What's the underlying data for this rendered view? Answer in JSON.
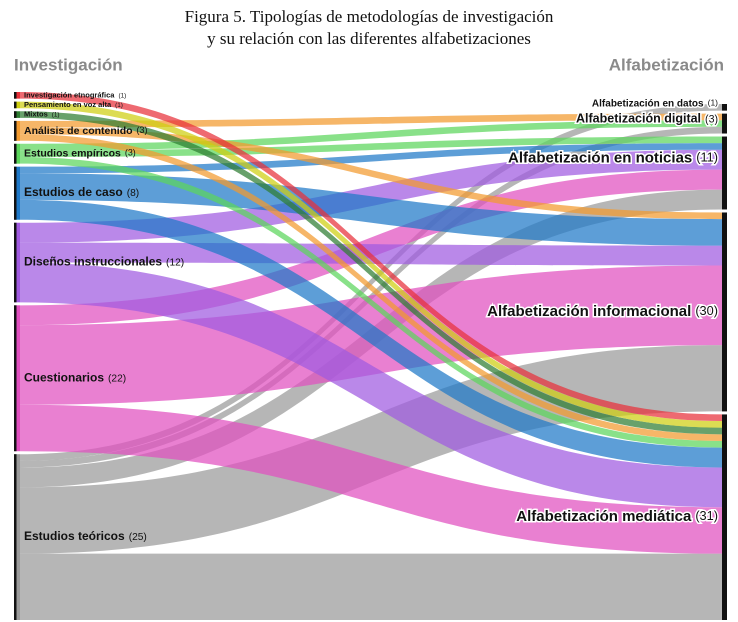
{
  "chart_data": {
    "type": "sankey",
    "title": [
      "Figura 5. Tipologías de metodologías de investigación",
      "y su relación con las diferentes alfabetizaciones"
    ],
    "left_heading": "Investigación",
    "right_heading": "Alfabetización",
    "left": [
      {
        "name": "Investigación etnográfica",
        "value": 1,
        "value_label": "(1)",
        "color": "#e8313a"
      },
      {
        "name": "Pensamiento en voz alta",
        "value": 1,
        "value_label": "(1)",
        "color": "#cfcf10"
      },
      {
        "name": "Mixtos",
        "value": 1,
        "value_label": "(1)",
        "color": "#2e7d32"
      },
      {
        "name": "Análisis de contenido",
        "value": 3,
        "value_label": "(3)",
        "color": "#f39a2e"
      },
      {
        "name": "Estudios empíricos",
        "value": 3,
        "value_label": "(3)",
        "color": "#5bd65b"
      },
      {
        "name": "Estudios de caso",
        "value": 8,
        "value_label": "(8)",
        "color": "#1e78c8"
      },
      {
        "name": "Diseños instruccionales",
        "value": 12,
        "value_label": "(12)",
        "color": "#a05ae0"
      },
      {
        "name": "Cuestionarios",
        "value": 22,
        "value_label": "(22)",
        "color": "#e04fbf"
      },
      {
        "name": "Estudios teóricos",
        "value": 25,
        "value_label": "(25)",
        "color": "#9a9a9a"
      }
    ],
    "right": [
      {
        "name": "Alfabetización en datos",
        "value": 1,
        "value_label": "(1)"
      },
      {
        "name": "Alfabetización digital",
        "value": 3,
        "value_label": "(3)"
      },
      {
        "name": "Alfabetización en noticias",
        "value": 11,
        "value_label": "(11)"
      },
      {
        "name": "Alfabetización informacional",
        "value": 30,
        "value_label": "(30)"
      },
      {
        "name": "Alfabetización mediática",
        "value": 31,
        "value_label": "(31)"
      }
    ],
    "links": [
      {
        "source": 0,
        "target": 4,
        "value": 1
      },
      {
        "source": 1,
        "target": 4,
        "value": 1
      },
      {
        "source": 2,
        "target": 4,
        "value": 1
      },
      {
        "source": 3,
        "target": 1,
        "value": 1
      },
      {
        "source": 3,
        "target": 3,
        "value": 1
      },
      {
        "source": 3,
        "target": 4,
        "value": 1
      },
      {
        "source": 4,
        "target": 1,
        "value": 1
      },
      {
        "source": 4,
        "target": 2,
        "value": 1
      },
      {
        "source": 4,
        "target": 4,
        "value": 1
      },
      {
        "source": 5,
        "target": 2,
        "value": 1
      },
      {
        "source": 5,
        "target": 3,
        "value": 4
      },
      {
        "source": 5,
        "target": 4,
        "value": 3
      },
      {
        "source": 6,
        "target": 2,
        "value": 3
      },
      {
        "source": 6,
        "target": 3,
        "value": 3
      },
      {
        "source": 6,
        "target": 4,
        "value": 6
      },
      {
        "source": 7,
        "target": 2,
        "value": 3
      },
      {
        "source": 7,
        "target": 3,
        "value": 12
      },
      {
        "source": 7,
        "target": 4,
        "value": 7
      },
      {
        "source": 8,
        "target": 0,
        "value": 1
      },
      {
        "source": 8,
        "target": 1,
        "value": 1
      },
      {
        "source": 8,
        "target": 2,
        "value": 3
      },
      {
        "source": 8,
        "target": 3,
        "value": 10
      },
      {
        "source": 8,
        "target": 4,
        "value": 10
      }
    ]
  }
}
